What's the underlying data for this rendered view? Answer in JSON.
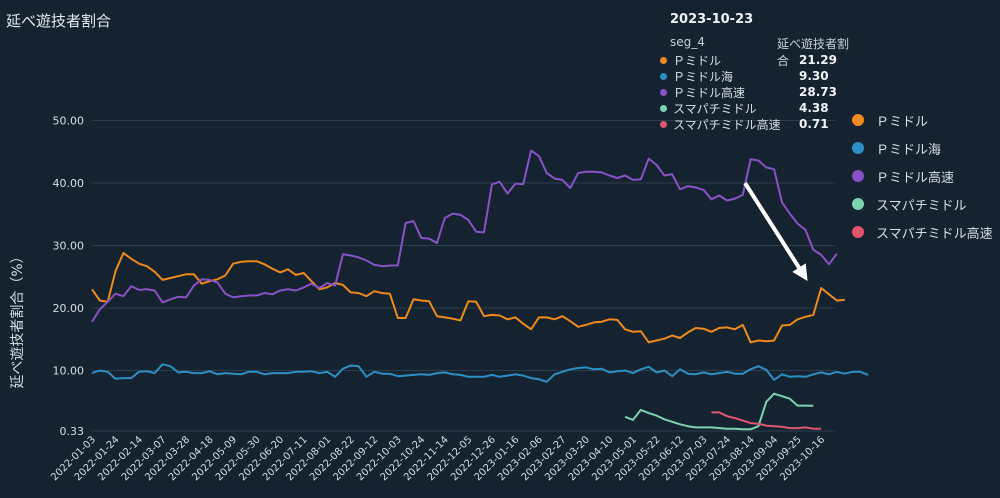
{
  "chart_data": {
    "type": "line",
    "title": "延べ遊技者割合",
    "ylabel": "延べ遊技者割合（%）",
    "xlabel": "",
    "ylim": [
      0.33,
      55
    ],
    "yticks": [
      0.33,
      10.0,
      20.0,
      30.0,
      40.0,
      50.0
    ],
    "ytick_labels": [
      "0.33",
      "10.00",
      "20.00",
      "30.00",
      "40.00",
      "50.00"
    ],
    "x_start": "2022-01-03",
    "x_end": "2023-10-23",
    "xtick_labels": [
      "2022-01-03",
      "2022-01-24",
      "2022-02-14",
      "2022-03-07",
      "2022-03-28",
      "2022-04-18",
      "2022-05-09",
      "2022-05-30",
      "2022-06-20",
      "2022-07-11",
      "2022-08-01",
      "2022-08-22",
      "2022-09-12",
      "2022-10-03",
      "2022-10-24",
      "2022-11-14",
      "2022-12-05",
      "2022-12-26",
      "2023-01-16",
      "2023-02-06",
      "2023-02-27",
      "2023-03-20",
      "2023-04-10",
      "2023-05-01",
      "2023-05-22",
      "2023-06-12",
      "2023-07-03",
      "2023-07-24",
      "2023-08-14",
      "2023-09-04",
      "2023-09-25",
      "2023-10-16"
    ],
    "legend_position": "right",
    "grid": true,
    "series": [
      {
        "name": "Ｐミドル",
        "color": "#ef8a1c",
        "start": "2022-01-03",
        "values": [
          23.0,
          21.2,
          21.0,
          25.9,
          28.8,
          27.9,
          27.1,
          26.7,
          25.8,
          24.5,
          24.8,
          25.1,
          25.4,
          25.4,
          23.9,
          24.3,
          24.6,
          25.2,
          27.1,
          27.4,
          27.5,
          27.5,
          27.0,
          26.3,
          25.7,
          26.2,
          25.3,
          25.6,
          24.3,
          23.0,
          23.3,
          24.0,
          23.7,
          22.5,
          22.4,
          21.9,
          22.7,
          22.4,
          22.3,
          18.4,
          18.4,
          21.4,
          21.2,
          21.1,
          18.7,
          18.5,
          18.3,
          18.0,
          21.1,
          21.0,
          18.7,
          18.9,
          18.8,
          18.2,
          18.5,
          17.5,
          16.6,
          18.5,
          18.5,
          18.2,
          18.7,
          17.9,
          17.0,
          17.3,
          17.7,
          17.8,
          18.2,
          18.1,
          16.6,
          16.2,
          16.3,
          14.5,
          14.8,
          15.1,
          15.6,
          15.2,
          16.1,
          16.8,
          16.7,
          16.2,
          16.8,
          16.9,
          16.6,
          17.3,
          14.5,
          14.8,
          14.7,
          14.8,
          17.2,
          17.3,
          18.2,
          18.6,
          18.9,
          23.2,
          22.2,
          21.2,
          21.3
        ]
      },
      {
        "name": "Ｐミドル海",
        "color": "#2e8fc6",
        "start": "2022-01-03",
        "values": [
          9.6,
          10.0,
          9.8,
          8.7,
          8.8,
          8.8,
          9.8,
          9.9,
          9.6,
          11.0,
          10.7,
          9.7,
          9.8,
          9.6,
          9.6,
          9.9,
          9.4,
          9.6,
          9.5,
          9.4,
          9.8,
          9.8,
          9.4,
          9.6,
          9.6,
          9.6,
          9.8,
          9.8,
          9.9,
          9.6,
          9.8,
          9.0,
          10.3,
          10.8,
          10.7,
          9.0,
          9.8,
          9.5,
          9.5,
          9.1,
          9.2,
          9.3,
          9.4,
          9.3,
          9.6,
          9.7,
          9.4,
          9.3,
          9.0,
          9.0,
          9.0,
          9.3,
          9.0,
          9.2,
          9.4,
          9.2,
          8.8,
          8.6,
          8.2,
          9.4,
          9.8,
          10.2,
          10.4,
          10.5,
          10.2,
          10.3,
          9.7,
          9.9,
          10.0,
          9.6,
          10.2,
          10.6,
          9.7,
          10.0,
          9.1,
          10.2,
          9.5,
          9.4,
          9.7,
          9.4,
          9.6,
          9.8,
          9.5,
          9.5,
          10.2,
          10.7,
          10.1,
          8.5,
          9.4,
          9.0,
          9.1,
          9.0,
          9.4,
          9.7,
          9.4,
          9.8,
          9.5,
          9.8,
          9.8,
          9.3
        ]
      },
      {
        "name": "Ｐミドル高速",
        "color": "#8a52c8",
        "start": "2022-01-03",
        "values": [
          17.8,
          19.8,
          21.0,
          22.3,
          21.9,
          23.5,
          22.9,
          23.0,
          22.8,
          20.9,
          21.4,
          21.8,
          21.7,
          23.6,
          24.6,
          24.5,
          24.1,
          22.3,
          21.7,
          21.9,
          22.0,
          22.0,
          22.4,
          22.2,
          22.8,
          23.0,
          22.8,
          23.3,
          23.9,
          23.2,
          24.0,
          23.6,
          28.6,
          28.4,
          28.1,
          27.6,
          26.9,
          26.7,
          26.8,
          26.8,
          33.6,
          33.9,
          31.2,
          31.1,
          30.4,
          34.4,
          35.1,
          34.9,
          34.1,
          32.2,
          32.1,
          39.8,
          40.2,
          38.3,
          39.9,
          39.8,
          45.2,
          44.3,
          41.6,
          40.7,
          40.5,
          39.2,
          41.6,
          41.8,
          41.8,
          41.7,
          41.2,
          40.8,
          41.2,
          40.5,
          40.6,
          43.9,
          42.9,
          41.2,
          41.4,
          39.0,
          39.5,
          39.3,
          38.9,
          37.4,
          38.0,
          37.2,
          37.5,
          38.1,
          43.8,
          43.6,
          42.5,
          42.2,
          36.9,
          35.1,
          33.5,
          32.5,
          29.3,
          28.5,
          27.0,
          28.7
        ]
      },
      {
        "name": "スマパチミドル",
        "color": "#7dd3b0",
        "start": "2023-04-24",
        "values": [
          2.6,
          2.1,
          3.7,
          3.2,
          2.8,
          2.2,
          1.8,
          1.4,
          1.1,
          0.9,
          0.9,
          0.9,
          0.8,
          0.7,
          0.7,
          0.6,
          0.6,
          1.1,
          5.0,
          6.3,
          5.9,
          5.5,
          4.4,
          4.4,
          4.38
        ]
      },
      {
        "name": "スマパチミドル高速",
        "color": "#e2566c",
        "start": "2023-07-10",
        "values": [
          3.3,
          3.3,
          2.7,
          2.4,
          2.0,
          1.6,
          1.5,
          1.2,
          1.1,
          1.0,
          0.8,
          0.8,
          0.9,
          0.7,
          0.71
        ]
      }
    ]
  },
  "tooltip": {
    "date": "2023-10-23",
    "col_series": "seg_4",
    "col_value": "延べ遊技者割合",
    "rows": [
      {
        "name": "Ｐミドル",
        "value": "21.29"
      },
      {
        "name": "Ｐミドル海",
        "value": "9.30"
      },
      {
        "name": "Ｐミドル高速",
        "value": "28.73"
      },
      {
        "name": "スマパチミドル",
        "value": "4.38"
      },
      {
        "name": "スマパチミドル高速",
        "value": "0.71"
      }
    ]
  }
}
